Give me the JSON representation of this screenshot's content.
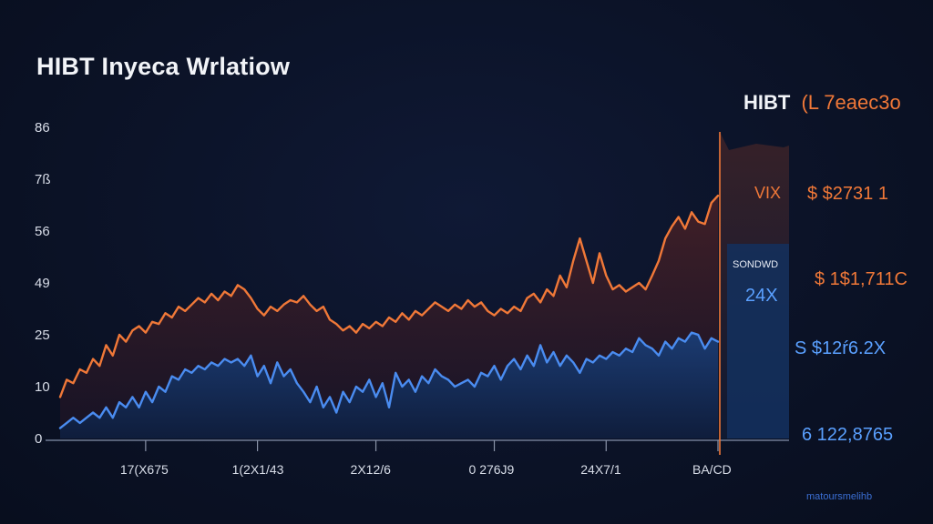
{
  "title": "HIBT Inyeca Wrlatiow",
  "header_right": {
    "ticker": "HIBT",
    "sub": "(L 7eaec3o"
  },
  "footer_note": "matoursmelihb",
  "colors": {
    "orange": "#f07838",
    "blue": "#4a8cf0",
    "orange_fill": "#3a1f22",
    "blue_fill": "#13305e",
    "background": "#0b1226",
    "marker": "#f07838"
  },
  "chart_data": {
    "type": "line",
    "y_ticks": [
      {
        "value": 0,
        "label": "0"
      },
      {
        "value": 10,
        "label": "10"
      },
      {
        "value": 25,
        "label": "25"
      },
      {
        "value": 49,
        "label": "49"
      },
      {
        "value": 56,
        "label": "56"
      },
      {
        "value": 78,
        "label": "7ß"
      },
      {
        "value": 86,
        "label": "86"
      }
    ],
    "x_ticks": [
      {
        "x": 13,
        "label": "17(X675"
      },
      {
        "x": 30,
        "label": "1(2X1/43"
      },
      {
        "x": 48,
        "label": "2X12/6"
      },
      {
        "x": 66,
        "label": "0 276J9"
      },
      {
        "x": 83,
        "label": "24X7/1"
      },
      {
        "x": 100,
        "label": "BA/CD"
      }
    ],
    "xlim": [
      0,
      100
    ],
    "marker_x": 100,
    "series": [
      {
        "color": "orange",
        "x": [
          0,
          1,
          2,
          3,
          4,
          5,
          6,
          7,
          8,
          9,
          10,
          11,
          12,
          13,
          14,
          15,
          16,
          17,
          18,
          19,
          20,
          21,
          22,
          23,
          24,
          25,
          26,
          27,
          28,
          29,
          30,
          31,
          32,
          33,
          34,
          35,
          36,
          37,
          38,
          39,
          40,
          41,
          42,
          43,
          44,
          45,
          46,
          47,
          48,
          49,
          50,
          51,
          52,
          53,
          54,
          55,
          56,
          57,
          58,
          59,
          60,
          61,
          62,
          63,
          64,
          65,
          66,
          67,
          68,
          69,
          70,
          71,
          72,
          73,
          74,
          75,
          76,
          77,
          78,
          79,
          80,
          81,
          82,
          83,
          84,
          85,
          86,
          87,
          88,
          89,
          90,
          91,
          92,
          93,
          94,
          95,
          96,
          97,
          98,
          99,
          100
        ],
        "y": [
          8,
          12,
          11,
          15,
          14,
          18,
          16,
          22,
          19,
          25,
          23,
          27,
          29,
          26,
          31,
          30,
          35,
          33,
          38,
          36,
          39,
          42,
          40,
          44,
          41,
          45,
          43,
          48,
          46,
          42,
          37,
          34,
          38,
          36,
          39,
          41,
          40,
          43,
          39,
          36,
          38,
          32,
          30,
          27,
          29,
          26,
          30,
          28,
          31,
          29,
          33,
          31,
          35,
          32,
          36,
          34,
          37,
          40,
          38,
          36,
          39,
          37,
          41,
          38,
          40,
          36,
          34,
          37,
          35,
          38,
          36,
          42,
          44,
          40,
          46,
          43,
          50,
          47,
          52,
          55,
          52,
          49,
          53,
          50,
          46,
          48,
          45,
          47,
          49,
          46,
          50,
          52,
          55,
          58,
          62,
          57,
          64,
          60,
          59,
          68,
          71
        ]
      },
      {
        "color": "blue",
        "x": [
          0,
          1,
          2,
          3,
          4,
          5,
          6,
          7,
          8,
          9,
          10,
          11,
          12,
          13,
          14,
          15,
          16,
          17,
          18,
          19,
          20,
          21,
          22,
          23,
          24,
          25,
          26,
          27,
          28,
          29,
          30,
          31,
          32,
          33,
          34,
          35,
          36,
          37,
          38,
          39,
          40,
          41,
          42,
          43,
          44,
          45,
          46,
          47,
          48,
          49,
          50,
          51,
          52,
          53,
          54,
          55,
          56,
          57,
          58,
          59,
          60,
          61,
          62,
          63,
          64,
          65,
          66,
          67,
          68,
          69,
          70,
          71,
          72,
          73,
          74,
          75,
          76,
          77,
          78,
          79,
          80,
          81,
          82,
          83,
          84,
          85,
          86,
          87,
          88,
          89,
          90,
          91,
          92,
          93,
          94,
          95,
          96,
          97,
          98,
          99,
          100
        ],
        "y": [
          2,
          3,
          4,
          3,
          4,
          5,
          4,
          6,
          4,
          7,
          6,
          8,
          6,
          9,
          7,
          10,
          9,
          13,
          12,
          15,
          14,
          16,
          15,
          17,
          16,
          18,
          17,
          18,
          16,
          19,
          13,
          16,
          11,
          17,
          13,
          15,
          11,
          9,
          7,
          10,
          6,
          8,
          5,
          9,
          7,
          10,
          9,
          12,
          8,
          11,
          6,
          14,
          10,
          12,
          9,
          13,
          11,
          15,
          13,
          12,
          10,
          11,
          12,
          10,
          14,
          13,
          16,
          12,
          16,
          18,
          15,
          19,
          16,
          22,
          17,
          20,
          16,
          19,
          17,
          14,
          18,
          17,
          19,
          18,
          20,
          19,
          21,
          20,
          24,
          22,
          21,
          19,
          23,
          21,
          24,
          23,
          26,
          25,
          21,
          24,
          23
        ]
      }
    ],
    "annotations": [
      {
        "text": "VIX",
        "color": "orange"
      },
      {
        "text": "$ $2731 1",
        "color": "orange"
      },
      {
        "text": "SONDWD",
        "color": "white"
      },
      {
        "text": "24X",
        "color": "blue"
      },
      {
        "text": "$ 1$1,711C",
        "color": "orange"
      },
      {
        "text": "S $12ŕ6.2X",
        "color": "blue"
      },
      {
        "text": "6 122,8765",
        "color": "blue"
      }
    ]
  }
}
